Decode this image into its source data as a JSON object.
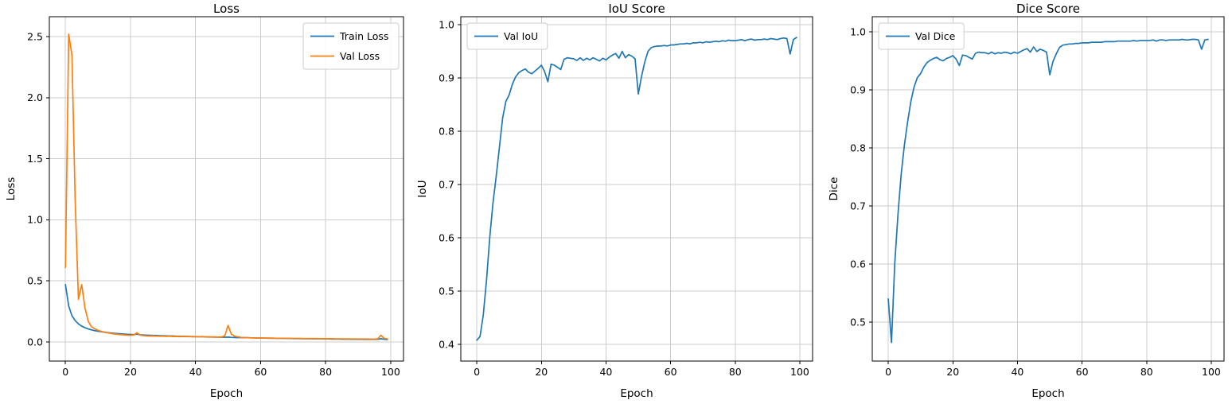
{
  "figure": {
    "background": "#ffffff",
    "text_color": "#000000",
    "grid_color": "#cccccc",
    "spine_color": "#000000",
    "accent_blue": "#1f77b4",
    "accent_orange": "#ff7f0e"
  },
  "chart_data": [
    {
      "type": "line",
      "title": "Loss",
      "xlabel": "Epoch",
      "ylabel": "Loss",
      "x_start": 0,
      "x_step": 1,
      "xlim": [
        -4.95,
        103.95
      ],
      "ylim": [
        -0.156,
        2.663
      ],
      "xticks": [
        0,
        20,
        40,
        60,
        80,
        100
      ],
      "yticks": [
        0.0,
        0.5,
        1.0,
        1.5,
        2.0,
        2.5
      ],
      "ytick_decimals": 1,
      "grid": true,
      "legend_position": "upper-right",
      "series": [
        {
          "name": "Train Loss",
          "color": "#1f77b4",
          "values": [
            0.47,
            0.295,
            0.215,
            0.175,
            0.148,
            0.13,
            0.117,
            0.107,
            0.099,
            0.093,
            0.088,
            0.084,
            0.08,
            0.077,
            0.074,
            0.071,
            0.069,
            0.067,
            0.065,
            0.063,
            0.062,
            0.061,
            0.064,
            0.059,
            0.057,
            0.056,
            0.055,
            0.054,
            0.053,
            0.052,
            0.051,
            0.05,
            0.049,
            0.049,
            0.048,
            0.047,
            0.046,
            0.046,
            0.045,
            0.044,
            0.044,
            0.043,
            0.043,
            0.042,
            0.041,
            0.041,
            0.04,
            0.04,
            0.039,
            0.039,
            0.04,
            0.038,
            0.037,
            0.036,
            0.036,
            0.035,
            0.035,
            0.034,
            0.034,
            0.033,
            0.033,
            0.032,
            0.032,
            0.031,
            0.031,
            0.03,
            0.03,
            0.03,
            0.029,
            0.029,
            0.028,
            0.028,
            0.028,
            0.027,
            0.027,
            0.027,
            0.026,
            0.026,
            0.026,
            0.025,
            0.025,
            0.025,
            0.024,
            0.024,
            0.024,
            0.023,
            0.023,
            0.023,
            0.022,
            0.022,
            0.022,
            0.022,
            0.021,
            0.021,
            0.021,
            0.021,
            0.022,
            0.027,
            0.022,
            0.02
          ]
        },
        {
          "name": "Val Loss",
          "color": "#ff7f0e",
          "values": [
            0.61,
            2.52,
            2.35,
            1.15,
            0.35,
            0.47,
            0.28,
            0.17,
            0.125,
            0.108,
            0.096,
            0.087,
            0.08,
            0.075,
            0.07,
            0.066,
            0.063,
            0.06,
            0.058,
            0.056,
            0.055,
            0.058,
            0.075,
            0.056,
            0.052,
            0.05,
            0.049,
            0.05,
            0.048,
            0.047,
            0.048,
            0.046,
            0.047,
            0.045,
            0.046,
            0.044,
            0.046,
            0.044,
            0.045,
            0.043,
            0.044,
            0.043,
            0.045,
            0.042,
            0.043,
            0.041,
            0.042,
            0.04,
            0.042,
            0.05,
            0.135,
            0.065,
            0.048,
            0.042,
            0.038,
            0.036,
            0.035,
            0.034,
            0.033,
            0.033,
            0.032,
            0.032,
            0.031,
            0.031,
            0.031,
            0.03,
            0.03,
            0.03,
            0.03,
            0.029,
            0.029,
            0.029,
            0.029,
            0.028,
            0.028,
            0.028,
            0.028,
            0.028,
            0.027,
            0.027,
            0.027,
            0.027,
            0.027,
            0.026,
            0.026,
            0.026,
            0.026,
            0.026,
            0.025,
            0.025,
            0.025,
            0.025,
            0.025,
            0.024,
            0.024,
            0.024,
            0.026,
            0.055,
            0.03,
            0.025
          ]
        }
      ]
    },
    {
      "type": "line",
      "title": "IoU Score",
      "xlabel": "Epoch",
      "ylabel": "IoU",
      "x_start": 0,
      "x_step": 1,
      "xlim": [
        -4.95,
        103.95
      ],
      "ylim": [
        0.369,
        1.015
      ],
      "xticks": [
        0,
        20,
        40,
        60,
        80,
        100
      ],
      "yticks": [
        0.4,
        0.5,
        0.6,
        0.7,
        0.8,
        0.9,
        1.0
      ],
      "ytick_decimals": 1,
      "grid": true,
      "legend_position": "upper-left",
      "series": [
        {
          "name": "Val IoU",
          "color": "#1f77b4",
          "values": [
            0.408,
            0.415,
            0.455,
            0.52,
            0.6,
            0.665,
            0.715,
            0.77,
            0.825,
            0.856,
            0.868,
            0.888,
            0.902,
            0.91,
            0.914,
            0.917,
            0.911,
            0.908,
            0.913,
            0.918,
            0.924,
            0.912,
            0.893,
            0.926,
            0.924,
            0.92,
            0.916,
            0.935,
            0.938,
            0.937,
            0.936,
            0.933,
            0.938,
            0.933,
            0.937,
            0.934,
            0.938,
            0.935,
            0.932,
            0.937,
            0.934,
            0.939,
            0.943,
            0.946,
            0.937,
            0.95,
            0.938,
            0.944,
            0.941,
            0.936,
            0.87,
            0.903,
            0.93,
            0.95,
            0.957,
            0.959,
            0.96,
            0.96,
            0.961,
            0.96,
            0.962,
            0.962,
            0.963,
            0.964,
            0.964,
            0.965,
            0.964,
            0.966,
            0.966,
            0.967,
            0.966,
            0.968,
            0.967,
            0.968,
            0.969,
            0.968,
            0.97,
            0.969,
            0.971,
            0.97,
            0.97,
            0.971,
            0.972,
            0.97,
            0.972,
            0.973,
            0.971,
            0.972,
            0.972,
            0.973,
            0.972,
            0.974,
            0.973,
            0.972,
            0.974,
            0.975,
            0.974,
            0.945,
            0.972,
            0.976
          ]
        }
      ]
    },
    {
      "type": "line",
      "title": "Dice Score",
      "xlabel": "Epoch",
      "ylabel": "Dice",
      "x_start": 0,
      "x_step": 1,
      "xlim": [
        -4.95,
        103.95
      ],
      "ylim": [
        0.433,
        1.026
      ],
      "xticks": [
        0,
        20,
        40,
        60,
        80,
        100
      ],
      "yticks": [
        0.5,
        0.6,
        0.7,
        0.8,
        0.9,
        1.0
      ],
      "ytick_decimals": 1,
      "grid": true,
      "legend_position": "upper-left",
      "series": [
        {
          "name": "Val Dice",
          "color": "#1f77b4",
          "values": [
            0.54,
            0.465,
            0.6,
            0.685,
            0.755,
            0.805,
            0.845,
            0.88,
            0.905,
            0.921,
            0.928,
            0.939,
            0.947,
            0.951,
            0.954,
            0.956,
            0.952,
            0.95,
            0.954,
            0.956,
            0.959,
            0.953,
            0.942,
            0.96,
            0.959,
            0.956,
            0.953,
            0.963,
            0.965,
            0.964,
            0.964,
            0.962,
            0.965,
            0.962,
            0.964,
            0.963,
            0.965,
            0.964,
            0.962,
            0.965,
            0.963,
            0.966,
            0.969,
            0.971,
            0.965,
            0.974,
            0.966,
            0.97,
            0.968,
            0.965,
            0.926,
            0.949,
            0.962,
            0.973,
            0.977,
            0.978,
            0.979,
            0.979,
            0.98,
            0.98,
            0.981,
            0.981,
            0.981,
            0.982,
            0.982,
            0.982,
            0.982,
            0.983,
            0.983,
            0.983,
            0.983,
            0.984,
            0.984,
            0.984,
            0.984,
            0.984,
            0.985,
            0.984,
            0.985,
            0.985,
            0.985,
            0.985,
            0.986,
            0.984,
            0.986,
            0.986,
            0.985,
            0.986,
            0.986,
            0.986,
            0.986,
            0.987,
            0.986,
            0.986,
            0.987,
            0.987,
            0.986,
            0.97,
            0.986,
            0.987
          ]
        }
      ]
    }
  ]
}
